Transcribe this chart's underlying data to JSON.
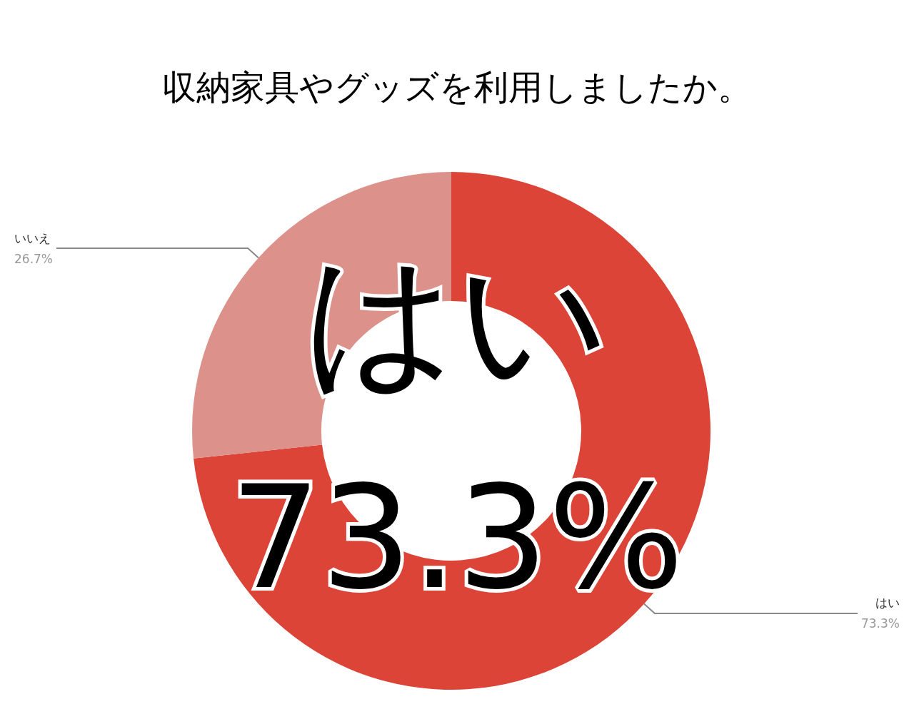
{
  "chart_data": {
    "type": "donut",
    "title": "収納家具やグッズを利用しましたか。",
    "categories": [
      "はい",
      "いいえ"
    ],
    "values": [
      73.3,
      26.7
    ],
    "colors": [
      "#db4437",
      "#dc918b"
    ],
    "value_labels": [
      "73.3%",
      "26.7%"
    ],
    "annotations": [
      "はい",
      "73.3%"
    ],
    "legend": false
  }
}
